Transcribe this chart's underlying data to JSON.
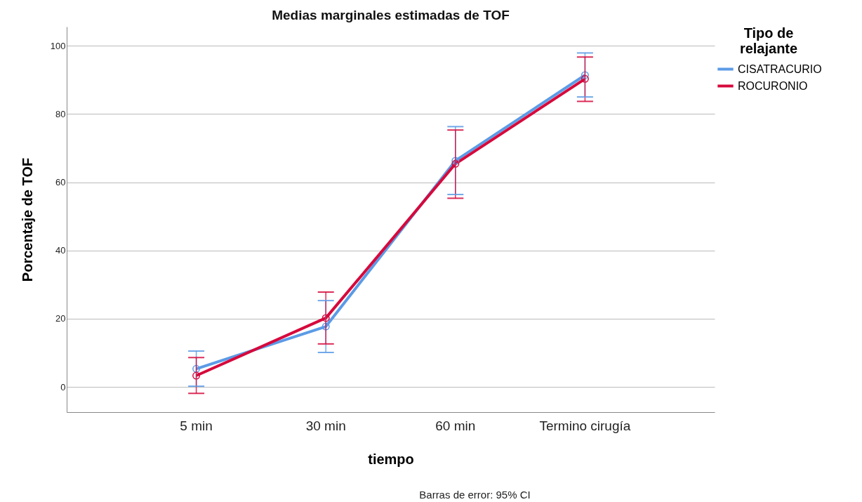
{
  "chart_data": {
    "type": "line",
    "title": "Medias marginales estimadas de TOF",
    "xlabel": "tiempo",
    "ylabel": "Porcentaje de TOF",
    "legend_title": "Tipo de relajante",
    "categories": [
      "5 min",
      "30 min",
      "60 min",
      "Termino cirugía"
    ],
    "series": [
      {
        "name": "CISATRACURIO",
        "color": "#5b9be6",
        "values": [
          5.3,
          17.7,
          66.3,
          91.4
        ],
        "errors": [
          [
            0.2,
            10.5
          ],
          [
            10.1,
            25.3
          ],
          [
            56.4,
            76.3
          ],
          [
            85.0,
            97.9
          ]
        ]
      },
      {
        "name": "ROCURONIO",
        "color": "#d6093c",
        "values": [
          3.3,
          20.2,
          65.4,
          90.3
        ],
        "errors": [
          [
            -1.9,
            8.6
          ],
          [
            12.6,
            27.8
          ],
          [
            55.3,
            75.3
          ],
          [
            83.7,
            96.7
          ]
        ]
      }
    ],
    "ylim": [
      -7.4,
      105.6
    ],
    "yticks": [
      0,
      20,
      40,
      60,
      80,
      100
    ],
    "grid": "y",
    "legend": "right",
    "marker": "circle",
    "line_style": "solid",
    "annotations": [
      "Barras de error: 95% CI"
    ]
  }
}
